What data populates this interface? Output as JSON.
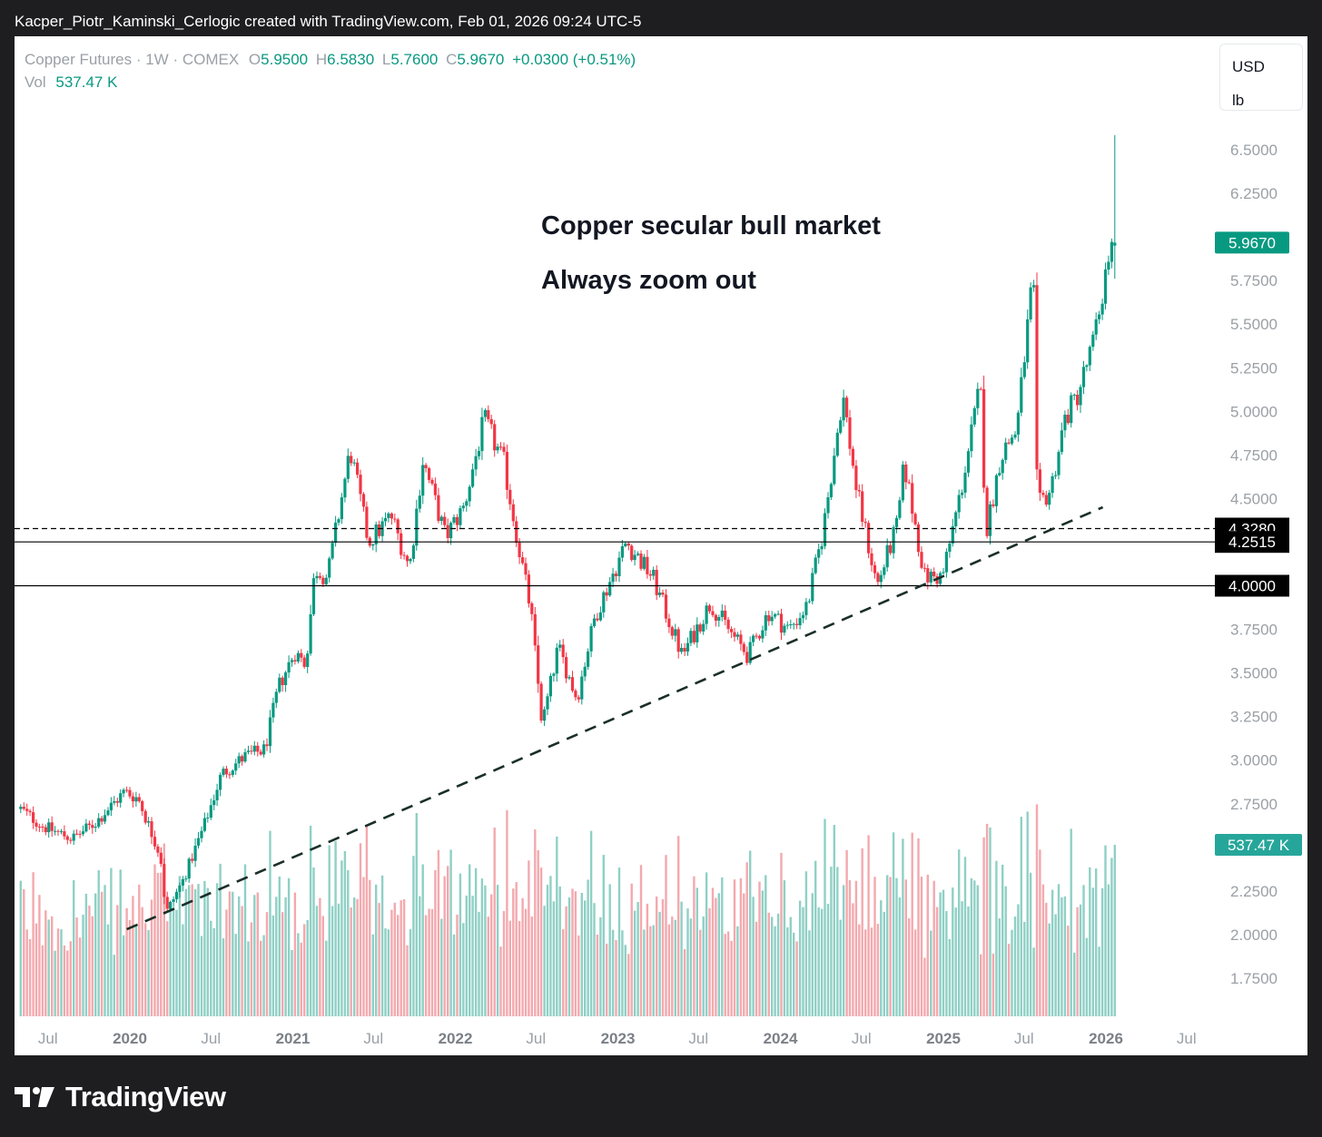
{
  "header": {
    "attribution": "Kacper_Piotr_Kaminski_Cerlogic created with TradingView.com, Feb 01, 2026 09:24 UTC-5"
  },
  "legend": {
    "symbol": "Copper Futures · 1W · COMEX",
    "open_label": "O",
    "open": "5.9500",
    "high_label": "H",
    "high": "6.5830",
    "low_label": "L",
    "low": "5.7600",
    "close_label": "C",
    "close": "5.9670",
    "change": "+0.0300 (+0.51%)",
    "volume_label": "Vol",
    "volume": "537.47 K"
  },
  "currency": {
    "currency": "USD",
    "unit": "lb"
  },
  "annotations": {
    "line1": "Copper secular bull market",
    "line2": "Always zoom out"
  },
  "footer": {
    "brand": "TradingView"
  },
  "colors": {
    "up": "#089981",
    "down": "#f23645",
    "vol_up": "#8fd0c5",
    "vol_down": "#f3a9ae",
    "axis_text": "#9aa0a6",
    "line": "#000000",
    "trend": "#1a2f28"
  },
  "chart_data": {
    "type": "candlestick",
    "x_labels": [
      "Jul",
      "2020",
      "Jul",
      "2021",
      "Jul",
      "2022",
      "Jul",
      "2023",
      "Jul",
      "2024",
      "Jul",
      "2025",
      "Jul",
      "2026",
      "Jul"
    ],
    "x_label_dates": [
      "2019-07-01",
      "2020-01-01",
      "2020-07-01",
      "2021-01-01",
      "2021-07-01",
      "2022-01-01",
      "2022-07-01",
      "2023-01-01",
      "2023-07-01",
      "2024-01-01",
      "2024-07-01",
      "2025-01-01",
      "2025-07-01",
      "2026-01-01",
      "2026-07-01"
    ],
    "y_ticks": [
      "6.5000",
      "6.2500",
      "5.7500",
      "5.5000",
      "5.2500",
      "5.0000",
      "4.7500",
      "4.5000",
      "3.7500",
      "3.5000",
      "3.2500",
      "3.0000",
      "2.7500",
      "2.2500",
      "2.0000",
      "1.7500"
    ],
    "ylim": [
      1.65,
      6.75
    ],
    "last_price": "5.9670",
    "last_volume": "537.47 K",
    "horizontal_levels": [
      {
        "label": "4.3280",
        "value": 4.328,
        "style": "dashed"
      },
      {
        "label": "4.2515",
        "value": 4.2515,
        "style": "solid"
      },
      {
        "label": "4.0000",
        "value": 4.0,
        "style": "solid"
      }
    ],
    "trendline": {
      "points": [
        {
          "date": "2019-12-25",
          "price": 2.03
        },
        {
          "date": "2025-12-25",
          "price": 4.45
        }
      ],
      "style": "dashed"
    },
    "anchors": [
      {
        "date": "2019-05-01",
        "close": 2.72
      },
      {
        "date": "2019-06-20",
        "close": 2.62
      },
      {
        "date": "2019-08-25",
        "close": 2.55
      },
      {
        "date": "2019-10-15",
        "close": 2.64
      },
      {
        "date": "2019-12-20",
        "close": 2.82
      },
      {
        "date": "2020-01-20",
        "close": 2.78
      },
      {
        "date": "2020-03-10",
        "close": 2.45
      },
      {
        "date": "2020-03-22",
        "close": 2.12
      },
      {
        "date": "2020-05-01",
        "close": 2.32
      },
      {
        "date": "2020-06-15",
        "close": 2.62
      },
      {
        "date": "2020-07-25",
        "close": 2.92
      },
      {
        "date": "2020-09-15",
        "close": 3.02
      },
      {
        "date": "2020-10-30",
        "close": 3.06
      },
      {
        "date": "2020-11-30",
        "close": 3.42
      },
      {
        "date": "2021-01-05",
        "close": 3.62
      },
      {
        "date": "2021-01-30",
        "close": 3.55
      },
      {
        "date": "2021-02-20",
        "close": 4.1
      },
      {
        "date": "2021-03-20",
        "close": 4.05
      },
      {
        "date": "2021-05-10",
        "close": 4.78
      },
      {
        "date": "2021-06-20",
        "close": 4.25
      },
      {
        "date": "2021-08-10",
        "close": 4.4
      },
      {
        "date": "2021-09-20",
        "close": 4.1
      },
      {
        "date": "2021-10-20",
        "close": 4.72
      },
      {
        "date": "2021-12-10",
        "close": 4.28
      },
      {
        "date": "2022-01-20",
        "close": 4.45
      },
      {
        "date": "2022-03-07",
        "close": 4.95
      },
      {
        "date": "2022-04-20",
        "close": 4.7
      },
      {
        "date": "2022-05-25",
        "close": 4.2
      },
      {
        "date": "2022-06-20",
        "close": 3.85
      },
      {
        "date": "2022-07-15",
        "close": 3.2
      },
      {
        "date": "2022-08-20",
        "close": 3.65
      },
      {
        "date": "2022-10-01",
        "close": 3.35
      },
      {
        "date": "2022-11-10",
        "close": 3.82
      },
      {
        "date": "2023-01-20",
        "close": 4.25
      },
      {
        "date": "2023-03-20",
        "close": 4.05
      },
      {
        "date": "2023-05-25",
        "close": 3.6
      },
      {
        "date": "2023-07-28",
        "close": 3.9
      },
      {
        "date": "2023-09-20",
        "close": 3.7
      },
      {
        "date": "2023-10-20",
        "close": 3.6
      },
      {
        "date": "2023-12-05",
        "close": 3.85
      },
      {
        "date": "2024-01-20",
        "close": 3.75
      },
      {
        "date": "2024-03-01",
        "close": 3.88
      },
      {
        "date": "2024-04-05",
        "close": 4.3
      },
      {
        "date": "2024-05-20",
        "close": 5.1
      },
      {
        "date": "2024-06-20",
        "close": 4.55
      },
      {
        "date": "2024-08-05",
        "close": 4.0
      },
      {
        "date": "2024-09-20",
        "close": 4.35
      },
      {
        "date": "2024-10-05",
        "close": 4.7
      },
      {
        "date": "2024-11-20",
        "close": 4.05
      },
      {
        "date": "2024-12-30",
        "close": 4.05
      },
      {
        "date": "2025-02-10",
        "close": 4.55
      },
      {
        "date": "2025-03-25",
        "close": 5.15
      },
      {
        "date": "2025-04-07",
        "close": 4.3
      },
      {
        "date": "2025-05-10",
        "close": 4.75
      },
      {
        "date": "2025-06-15",
        "close": 4.9
      },
      {
        "date": "2025-07-22",
        "close": 5.8
      },
      {
        "date": "2025-07-31",
        "close": 4.45
      },
      {
        "date": "2025-08-30",
        "close": 4.55
      },
      {
        "date": "2025-09-30",
        "close": 4.95
      },
      {
        "date": "2025-10-30",
        "close": 5.1
      },
      {
        "date": "2025-12-05",
        "close": 5.4
      },
      {
        "date": "2026-01-08",
        "close": 5.9
      },
      {
        "date": "2026-01-26",
        "close": 5.967
      }
    ],
    "last_candle": {
      "date": "2026-01-26",
      "open": 5.95,
      "high": 6.583,
      "low": 5.76,
      "close": 5.967,
      "volume": "537.47 K"
    }
  }
}
